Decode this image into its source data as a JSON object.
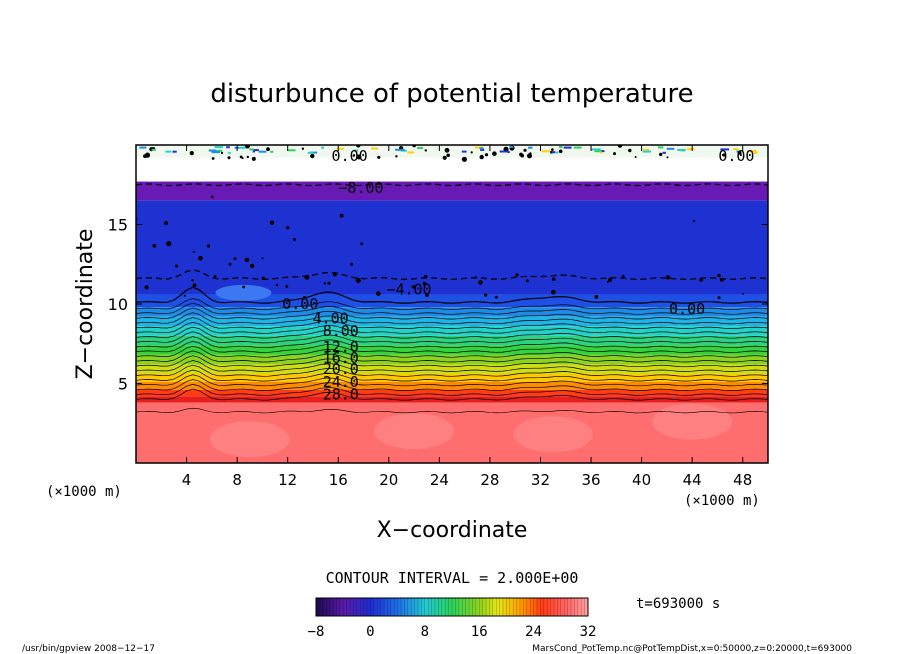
{
  "chart_data": {
    "type": "heatmap",
    "title": "disturbunce of potential temperature",
    "xlabel": "X−coordinate",
    "ylabel": "Z−coordinate",
    "x_unit_left": "(×1000 m)",
    "x_unit_right": "(×1000 m)",
    "xlim": [
      0,
      50
    ],
    "ylim": [
      0,
      20
    ],
    "x_ticks": [
      4,
      8,
      12,
      16,
      20,
      24,
      28,
      32,
      36,
      40,
      44,
      48
    ],
    "x_tick_labels": [
      "4",
      "8",
      "12",
      "16",
      "20",
      "24",
      "28",
      "32",
      "36",
      "40",
      "44",
      "48"
    ],
    "y_ticks": [
      5,
      10,
      15
    ],
    "y_tick_labels": [
      "5",
      "10",
      "15"
    ],
    "contour_labels": [
      {
        "text": "0.00",
        "x": 16.9,
        "y": 19.3
      },
      {
        "text": "0.00",
        "x": 47.5,
        "y": 19.3
      },
      {
        "text": "−8.00",
        "x": 17.8,
        "y": 17.3
      },
      {
        "text": "−4.00",
        "x": 21.6,
        "y": 10.9
      },
      {
        "text": "0.00",
        "x": 13.0,
        "y": 10.0
      },
      {
        "text": "0.00",
        "x": 43.6,
        "y": 9.7
      },
      {
        "text": "4.00",
        "x": 15.4,
        "y": 9.1
      },
      {
        "text": "8.00",
        "x": 16.2,
        "y": 8.3
      },
      {
        "text": "12.0",
        "x": 16.2,
        "y": 7.3
      },
      {
        "text": "16.0",
        "x": 16.2,
        "y": 6.6
      },
      {
        "text": "20.0",
        "x": 16.2,
        "y": 5.9
      },
      {
        "text": "24.0",
        "x": 16.2,
        "y": 5.1
      },
      {
        "text": "28.0",
        "x": 16.2,
        "y": 4.3
      }
    ],
    "color_scale": {
      "min": -8,
      "max": 32,
      "tick_values": [
        -8,
        0,
        8,
        16,
        24,
        32
      ],
      "tick_labels": [
        "−8",
        "0",
        "8",
        "16",
        "24",
        "32"
      ]
    },
    "legend_placement": "bottom",
    "contour_interval_label": "CONTOUR INTERVAL = 2.000E+00",
    "time_label": "t=693000 s"
  },
  "footer": {
    "left": "/usr/bin/gpview   2008−12−17",
    "right": "MarsCond_PotTemp.nc@PotTempDist,x=0:50000,z=0:20000,t=693000"
  },
  "colors": {
    "stops": [
      "#1b0a4d",
      "#4a0e8f",
      "#7a28c8",
      "#1a2cc8",
      "#1e46e6",
      "#1e9ae6",
      "#22d2c8",
      "#2ad25a",
      "#7ad222",
      "#c8dc14",
      "#ffd200",
      "#ff9600",
      "#ff3c14",
      "#e61e1e",
      "#ff6464",
      "#ff8c8c"
    ],
    "white_band": "#ffffff",
    "ink": "#000000"
  }
}
